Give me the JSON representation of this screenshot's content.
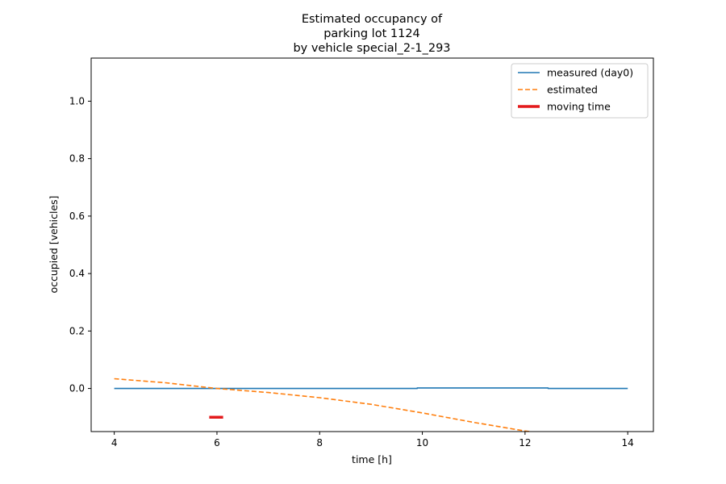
{
  "chart_data": {
    "type": "line",
    "title_lines": [
      "Estimated occupancy of",
      "parking lot 1124",
      "by vehicle special_2-1_293"
    ],
    "xlabel": "time [h]",
    "ylabel": "occupied [vehicles]",
    "xlim": [
      3.55,
      14.5
    ],
    "ylim": [
      -0.15,
      1.15
    ],
    "xticks": [
      4,
      6,
      8,
      10,
      12,
      14
    ],
    "yticks": [
      0.0,
      0.2,
      0.4,
      0.6,
      0.8,
      1.0
    ],
    "xtick_labels": [
      "4",
      "6",
      "8",
      "10",
      "12",
      "14"
    ],
    "ytick_labels": [
      "0.0",
      "0.2",
      "0.4",
      "0.6",
      "0.8",
      "1.0"
    ],
    "grid": false,
    "legend_position": "top-right",
    "series": [
      {
        "name": "measured (day0)",
        "color": "#1f77b4",
        "style": "solid",
        "x": [
          4,
          9.9,
          9.9,
          12.45,
          12.45,
          14
        ],
        "y": [
          0.0,
          0.0,
          0.002,
          0.002,
          0.0,
          0.0
        ]
      },
      {
        "name": "estimated",
        "color": "#ff7f0e",
        "style": "dashed",
        "x": [
          4,
          5,
          6,
          7,
          8,
          9,
          10,
          11,
          12,
          12.3
        ],
        "y": [
          0.034,
          0.02,
          0.0,
          -0.014,
          -0.032,
          -0.055,
          -0.085,
          -0.118,
          -0.148,
          -0.155
        ]
      },
      {
        "name": "moving time",
        "color": "#e31a1c",
        "style": "thick",
        "x": [
          5.85,
          6.12
        ],
        "y": [
          -0.1,
          -0.1
        ]
      }
    ]
  }
}
